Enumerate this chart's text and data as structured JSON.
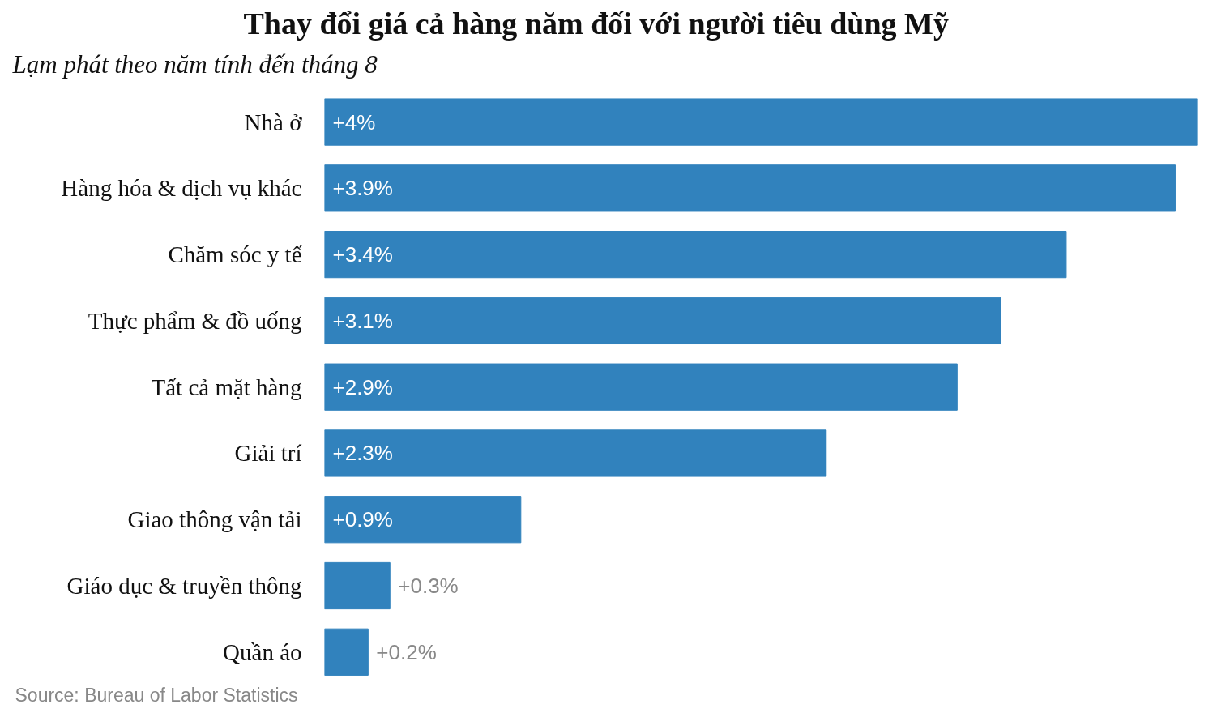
{
  "chart_data": {
    "type": "bar",
    "orientation": "horizontal",
    "title": "Thay đổi giá cả hàng năm đối với người tiêu dùng Mỹ",
    "subtitle": "Lạm phát theo năm tính đến tháng 8",
    "categories": [
      "Nhà ở",
      "Hàng hóa & dịch vụ khác",
      "Chăm sóc y tế",
      "Thực phẩm & đồ uống",
      "Tất cả mặt hàng",
      "Giải trí",
      "Giao thông vận tải",
      "Giáo dục & truyền thông",
      "Quần áo"
    ],
    "values": [
      4,
      3.9,
      3.4,
      3.1,
      2.9,
      2.3,
      0.9,
      0.3,
      0.2
    ],
    "value_labels": [
      "+4%",
      "+3.9%",
      "+3.4%",
      "+3.1%",
      "+2.9%",
      "+2.3%",
      "+0.9%",
      "+0.3%",
      "+0.2%"
    ],
    "color": "#3182bd",
    "annotations": [
      "Source: Bureau of Labor Statistics"
    ]
  }
}
